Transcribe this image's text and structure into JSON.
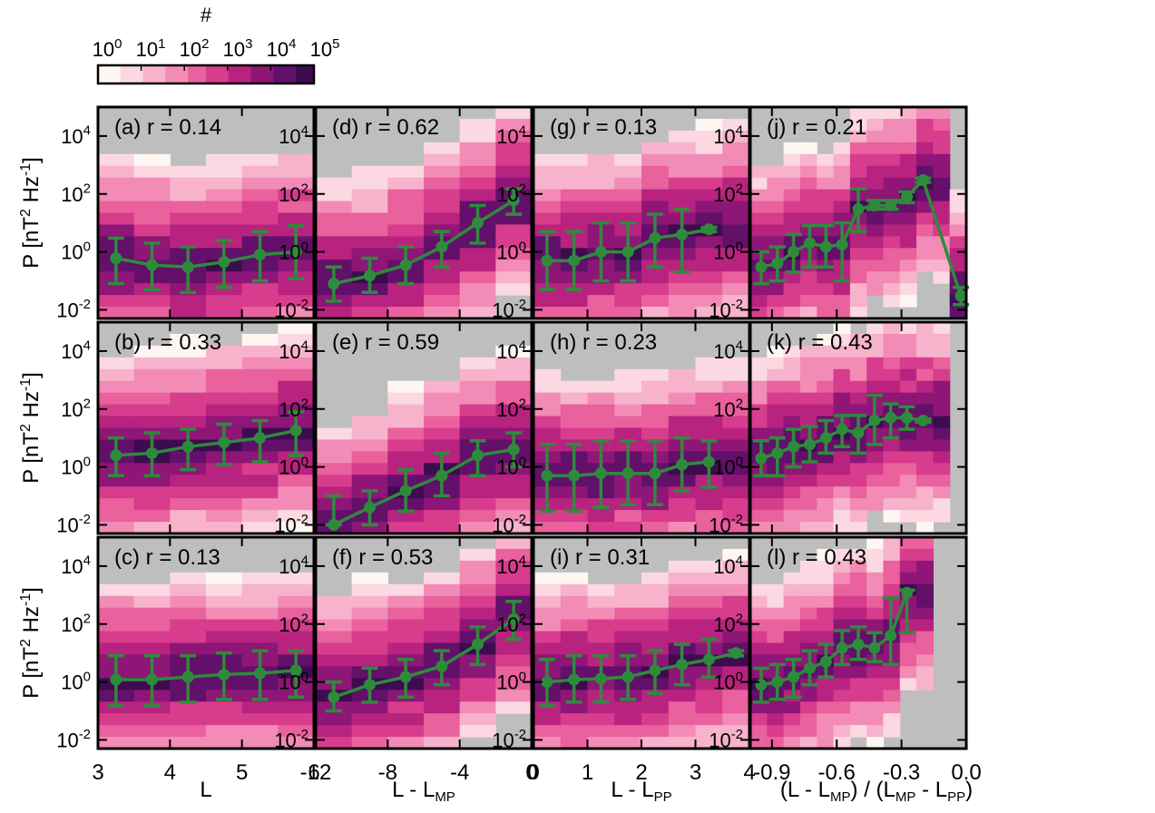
{
  "colorbar": {
    "title": "#",
    "ticks": [
      "10^0",
      "10^1",
      "10^2",
      "10^3",
      "10^4",
      "10^5"
    ]
  },
  "ylabel": "P [nT^2 Hz^-1]",
  "column_xlabels": [
    "L",
    "L - L_MP",
    "L - L_PP",
    "(L - L_MP) / (L_MP - L_PP)"
  ],
  "chart_data": [
    {
      "type": "heatmap+line",
      "panel": "(a)",
      "row": 0,
      "col": 0,
      "label": "(a) r = 0.14",
      "x": [
        3.25,
        3.75,
        4.25,
        4.75,
        5.25,
        5.75
      ],
      "y": [
        0.6,
        0.35,
        0.3,
        0.45,
        0.8,
        1.0
      ],
      "err_lo": [
        0.08,
        0.05,
        0.04,
        0.06,
        0.1,
        0.12
      ],
      "err_hi": [
        3,
        2,
        1.5,
        2.5,
        5,
        8
      ],
      "xlim": [
        3,
        6
      ],
      "ylim_log10": [
        -2.3,
        5
      ]
    },
    {
      "type": "heatmap+line",
      "panel": "(b)",
      "row": 1,
      "col": 0,
      "label": "(b) r = 0.33",
      "x": [
        3.25,
        3.75,
        4.25,
        4.75,
        5.25,
        5.75
      ],
      "y": [
        2.5,
        3,
        5,
        7,
        10,
        18
      ],
      "err_lo": [
        0.5,
        0.5,
        0.8,
        1.2,
        1.5,
        2.5
      ],
      "err_hi": [
        10,
        15,
        20,
        30,
        40,
        80
      ],
      "xlim": [
        3,
        6
      ],
      "ylim_log10": [
        -2.3,
        5
      ]
    },
    {
      "type": "heatmap+line",
      "panel": "(c)",
      "row": 2,
      "col": 0,
      "label": "(c) r = 0.13",
      "x": [
        3.25,
        3.75,
        4.25,
        4.75,
        5.25,
        5.75
      ],
      "y": [
        1.2,
        1.2,
        1.5,
        1.8,
        2,
        2.5
      ],
      "err_lo": [
        0.15,
        0.15,
        0.2,
        0.25,
        0.25,
        0.3
      ],
      "err_hi": [
        8,
        8,
        8,
        10,
        12,
        12
      ],
      "xlim": [
        3,
        6
      ],
      "ylim_log10": [
        -2.3,
        5
      ]
    },
    {
      "type": "heatmap+line",
      "panel": "(d)",
      "row": 0,
      "col": 1,
      "label": "(d) r = 0.62",
      "x": [
        -11,
        -9,
        -7,
        -5,
        -3,
        -1
      ],
      "y": [
        0.08,
        0.15,
        0.35,
        1.5,
        10,
        60
      ],
      "err_lo": [
        0.02,
        0.04,
        0.08,
        0.3,
        2,
        20
      ],
      "err_hi": [
        0.3,
        0.6,
        1.5,
        5,
        40,
        150
      ],
      "xlim": [
        -12,
        0
      ],
      "ylim_log10": [
        -2.3,
        5
      ]
    },
    {
      "type": "heatmap+line",
      "panel": "(e)",
      "row": 1,
      "col": 1,
      "label": "(e) r = 0.59",
      "x": [
        -11,
        -9,
        -7,
        -5,
        -3,
        -1
      ],
      "y": [
        0.01,
        0.04,
        0.15,
        0.5,
        2.5,
        4
      ],
      "err_lo": [
        0.01,
        0.01,
        0.03,
        0.1,
        0.5,
        1
      ],
      "err_hi": [
        0.1,
        0.15,
        0.8,
        3,
        8,
        15
      ],
      "xlim": [
        -12,
        0
      ],
      "ylim_log10": [
        -2.3,
        5
      ]
    },
    {
      "type": "heatmap+line",
      "panel": "(f)",
      "row": 2,
      "col": 1,
      "label": "(f) r = 0.53",
      "x": [
        -11,
        -9,
        -7,
        -5,
        -3,
        -1
      ],
      "y": [
        0.3,
        0.8,
        1.5,
        3.5,
        20,
        150
      ],
      "err_lo": [
        0.1,
        0.2,
        0.3,
        0.8,
        4,
        30
      ],
      "err_hi": [
        1,
        3,
        6,
        12,
        80,
        600
      ],
      "xlim": [
        -12,
        0
      ],
      "ylim_log10": [
        -2.3,
        5
      ]
    },
    {
      "type": "heatmap+line",
      "panel": "(g)",
      "row": 0,
      "col": 2,
      "label": "(g) r = 0.13",
      "x": [
        0.25,
        0.75,
        1.25,
        1.75,
        2.25,
        2.75,
        3.25
      ],
      "y": [
        0.5,
        0.5,
        1,
        1,
        3,
        4,
        6
      ],
      "err_lo": [
        0.05,
        0.05,
        0.1,
        0.1,
        0.3,
        0.2,
        5
      ],
      "err_hi": [
        5,
        5,
        10,
        10,
        20,
        30,
        7
      ],
      "xlim": [
        0,
        4
      ],
      "ylim_log10": [
        -2.3,
        5
      ]
    },
    {
      "type": "heatmap+line",
      "panel": "(h)",
      "row": 1,
      "col": 2,
      "label": "(h) r = 0.23",
      "x": [
        0.25,
        0.75,
        1.25,
        1.75,
        2.25,
        2.75,
        3.25
      ],
      "y": [
        0.5,
        0.5,
        0.6,
        0.6,
        0.6,
        1.2,
        1.5
      ],
      "err_lo": [
        0.03,
        0.03,
        0.04,
        0.05,
        0.05,
        0.15,
        0.2
      ],
      "err_hi": [
        6,
        6,
        8,
        8,
        8,
        10,
        8
      ],
      "xlim": [
        0,
        4
      ],
      "ylim_log10": [
        -2.3,
        5
      ]
    },
    {
      "type": "heatmap+line",
      "panel": "(i)",
      "row": 2,
      "col": 2,
      "label": "(i) r = 0.31",
      "x": [
        0.25,
        0.75,
        1.25,
        1.75,
        2.25,
        2.75,
        3.25,
        3.75
      ],
      "y": [
        1,
        1.2,
        1.3,
        1.5,
        2.5,
        4,
        6,
        10
      ],
      "err_lo": [
        0.15,
        0.2,
        0.2,
        0.25,
        0.4,
        0.8,
        1.5,
        8
      ],
      "err_hi": [
        6,
        8,
        8,
        8,
        12,
        20,
        30,
        12
      ],
      "xlim": [
        0,
        4
      ],
      "ylim_log10": [
        -2.3,
        5
      ]
    },
    {
      "type": "heatmap+line",
      "panel": "(j)",
      "row": 0,
      "col": 3,
      "label": "(j) r = 0.21",
      "x": [
        -0.95,
        -0.875,
        -0.8,
        -0.725,
        -0.65,
        -0.575,
        -0.5,
        -0.425,
        -0.35,
        -0.275,
        -0.2,
        -0.025
      ],
      "y": [
        0.3,
        0.4,
        1,
        2,
        1.5,
        1.8,
        30,
        40,
        40,
        80,
        300,
        0.03
      ],
      "err_lo": [
        0.08,
        0.1,
        0.2,
        0.3,
        0.3,
        0.1,
        5,
        30,
        30,
        50,
        250,
        0.015
      ],
      "err_hi": [
        1,
        1.5,
        4,
        8,
        8,
        10,
        150,
        60,
        60,
        120,
        350,
        0.06
      ],
      "xlim": [
        -1,
        0
      ],
      "ylim_log10": [
        -2.3,
        5
      ]
    },
    {
      "type": "heatmap+line",
      "panel": "(k)",
      "row": 1,
      "col": 3,
      "label": "(k) r = 0.43",
      "x": [
        -0.95,
        -0.875,
        -0.8,
        -0.725,
        -0.65,
        -0.575,
        -0.5,
        -0.425,
        -0.35,
        -0.275,
        -0.2
      ],
      "y": [
        2,
        3,
        5,
        6,
        10,
        20,
        15,
        40,
        50,
        50,
        40
      ],
      "err_lo": [
        0.5,
        0.5,
        1,
        1.5,
        3,
        5,
        3,
        6,
        10,
        20,
        35
      ],
      "err_hi": [
        8,
        10,
        20,
        25,
        40,
        60,
        60,
        300,
        150,
        120,
        45
      ],
      "xlim": [
        -1,
        0
      ],
      "ylim_log10": [
        -2.3,
        5
      ]
    },
    {
      "type": "heatmap+line",
      "panel": "(l)",
      "row": 2,
      "col": 3,
      "label": "(l) r = 0.43",
      "x": [
        -0.95,
        -0.875,
        -0.8,
        -0.725,
        -0.65,
        -0.575,
        -0.5,
        -0.425,
        -0.35,
        -0.275
      ],
      "y": [
        0.8,
        1,
        1.5,
        3,
        5,
        15,
        20,
        15,
        40,
        1200
      ],
      "err_lo": [
        0.2,
        0.25,
        0.3,
        0.8,
        1.5,
        4,
        6,
        5,
        4,
        50
      ],
      "err_hi": [
        3,
        4,
        6,
        12,
        20,
        60,
        80,
        50,
        800,
        1500
      ],
      "xlim": [
        -1,
        0
      ],
      "ylim_log10": [
        -2.3,
        5
      ]
    }
  ],
  "xticks": [
    [
      "3",
      "4",
      "5",
      "6"
    ],
    [
      "-12",
      "-8",
      "-4",
      "0"
    ],
    [
      "0",
      "1",
      "2",
      "3",
      "4"
    ],
    [
      "-0.9",
      "-0.6",
      "-0.3",
      "0.0"
    ]
  ],
  "yticks": [
    "10^-2",
    "10^0",
    "10^2",
    "10^4"
  ],
  "colors": {
    "line": "#2e8b3c",
    "missing": "#bebebe"
  }
}
